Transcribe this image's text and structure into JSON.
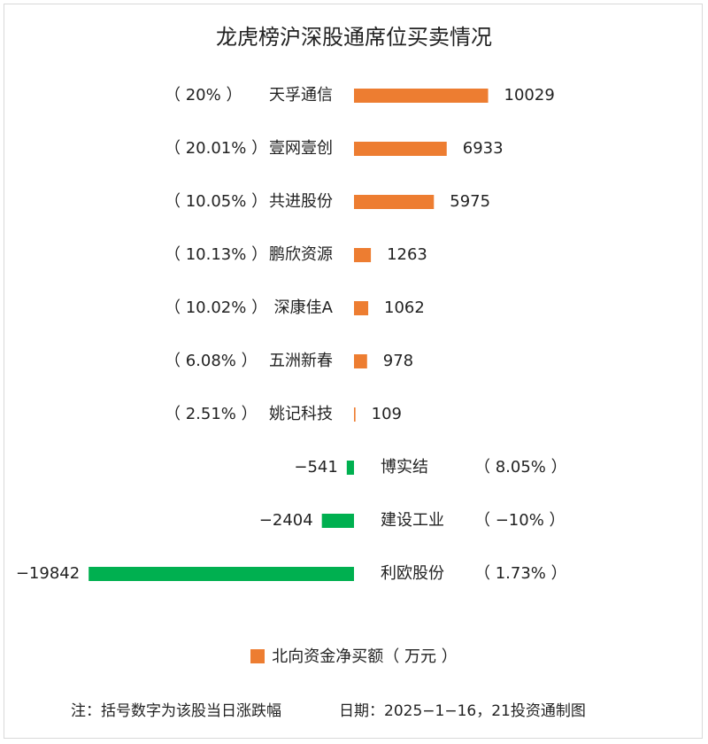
{
  "chart_data": {
    "type": "bar",
    "orientation": "horizontal",
    "title": "龙虎榜沪深股通席位买卖情况",
    "colors": {
      "positive": "#ed7d31",
      "negative": "#00b050"
    },
    "rows": [
      {
        "name": "天孚通信",
        "value": 10029,
        "value_label": "10029",
        "pct_label": "（ 20% ）"
      },
      {
        "name": "壹网壹创",
        "value": 6933,
        "value_label": "6933",
        "pct_label": "（ 20.01% ）"
      },
      {
        "name": "共进股份",
        "value": 5975,
        "value_label": "5975",
        "pct_label": "（ 10.05% ）"
      },
      {
        "name": "鹏欣资源",
        "value": 1263,
        "value_label": "1263",
        "pct_label": "（ 10.13% ）"
      },
      {
        "name": "深康佳A",
        "value": 1062,
        "value_label": "1062",
        "pct_label": "（ 10.02% ）"
      },
      {
        "name": "五洲新春",
        "value": 978,
        "value_label": "978",
        "pct_label": "（ 6.08% ）"
      },
      {
        "name": "姚记科技",
        "value": 109,
        "value_label": "109",
        "pct_label": "（ 2.51% ）"
      },
      {
        "name": "博实结",
        "value": -541,
        "value_label": "−541",
        "pct_label": "（ 8.05% ）"
      },
      {
        "name": "建设工业",
        "value": -2404,
        "value_label": "−2404",
        "pct_label": "（ −10% ）"
      },
      {
        "name": "利欧股份",
        "value": -19842,
        "value_label": "−19842",
        "pct_label": "（ 1.73% ）"
      }
    ],
    "legend": {
      "label": "北向资金净买额（ 万元 ）",
      "position": "bottom-center"
    },
    "grid": false
  },
  "footer": {
    "note": "注：括号数字为该股当日涨跌幅",
    "date_source": "日期：2025−1−16，21投资通制图"
  }
}
